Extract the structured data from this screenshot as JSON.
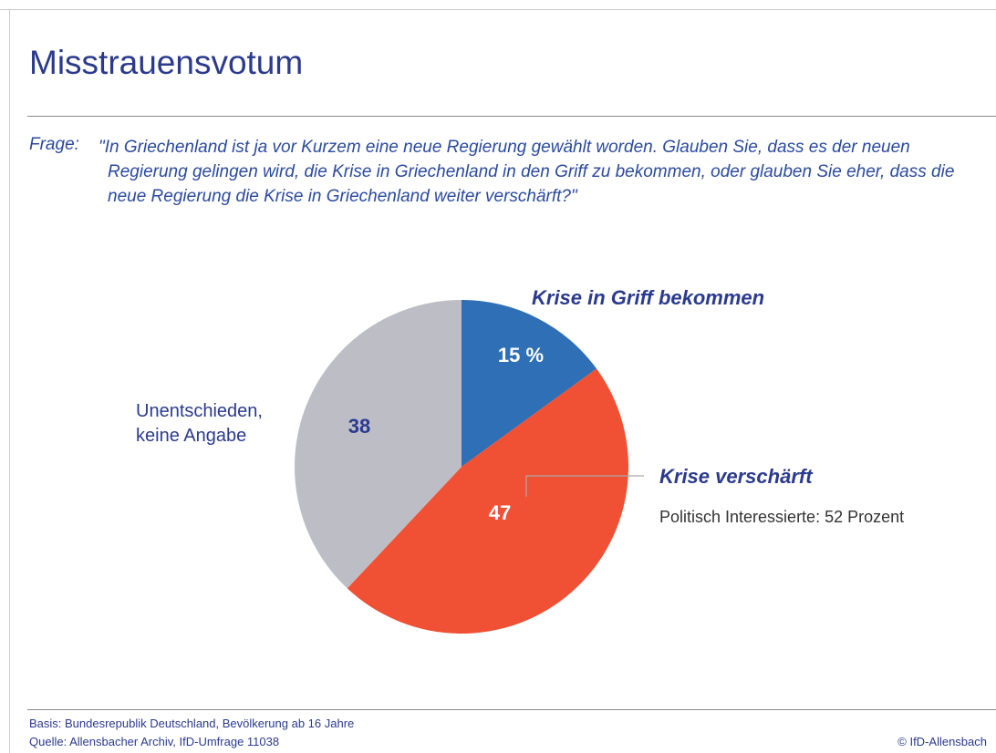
{
  "chart_data": {
    "type": "pie",
    "title": "Misstrauensvotum",
    "question_label": "Frage:",
    "question": "\"In Griechenland ist ja vor Kurzem eine neue Regierung gewählt worden. Glauben Sie, dass es der neuen Regierung gelingen wird, die Krise in Griechenland in den Griff zu bekommen, oder glauben Sie eher, dass die neue Regierung die Krise in Griechenland weiter verschärft?\"",
    "categories": [
      "Krise in Griff bekommen",
      "Krise verschärft",
      "Unentschieden, keine Angabe"
    ],
    "values": [
      15,
      47,
      38
    ],
    "value_labels": [
      "15 %",
      "47",
      "38"
    ],
    "colors": [
      "#2e6fb5",
      "#f05033",
      "#bdbdc5"
    ],
    "annotation": "Politisch Interessierte: 52 Prozent",
    "footer": {
      "basis": "Basis: Bundesrepublik Deutschland, Bevölkerung ab 16 Jahre",
      "source": "Quelle: Allensbacher Archiv, IfD-Umfrage 11038",
      "copyright": "© IfD-Allensbach"
    }
  }
}
